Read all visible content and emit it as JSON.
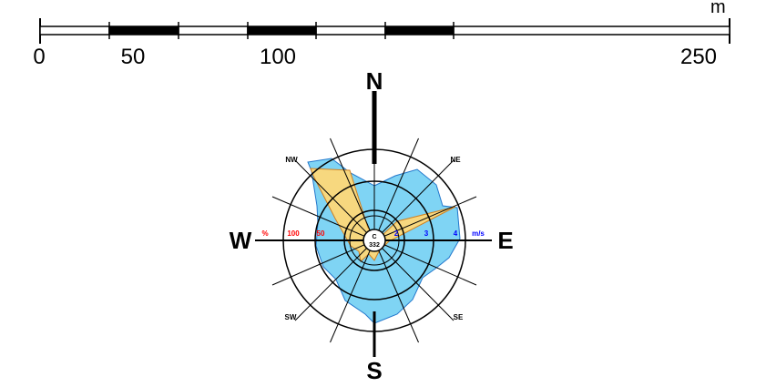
{
  "scale_bar": {
    "unit": "m",
    "tick_labels": [
      "0",
      "50",
      "100",
      "250"
    ],
    "colors": {
      "filled": "#000000",
      "empty": "#ffffff",
      "outline": "#000000"
    }
  },
  "compass": {
    "cardinals": {
      "north": "N",
      "east": "E",
      "south": "S",
      "west": "W"
    },
    "intercardinals": {
      "northeast": "NE",
      "southeast": "SE",
      "southwest": "SW",
      "northwest": "NW"
    },
    "center_labels": [
      "C",
      "332"
    ],
    "ring_labels_red": [
      "%",
      "100",
      "50"
    ],
    "ring_labels_blue": [
      "2",
      "3",
      "4",
      "m/s"
    ]
  },
  "colors": {
    "frequency_fill": "#f7d87f",
    "frequency_stroke": "#d08020",
    "speed_fill": "#7fd4f4",
    "speed_stroke": "#2277cc",
    "red_label": "#ff0000",
    "blue_label": "#0000ff"
  }
}
